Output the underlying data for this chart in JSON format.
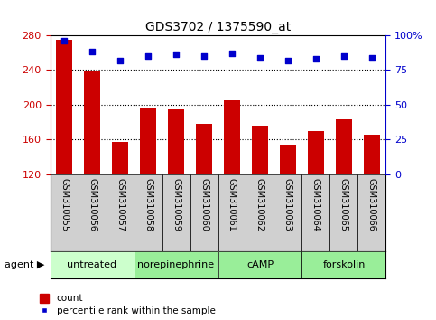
{
  "title": "GDS3702 / 1375590_at",
  "samples": [
    "GSM310055",
    "GSM310056",
    "GSM310057",
    "GSM310058",
    "GSM310059",
    "GSM310060",
    "GSM310061",
    "GSM310062",
    "GSM310063",
    "GSM310064",
    "GSM310065",
    "GSM310066"
  ],
  "bar_values": [
    275,
    238,
    157,
    197,
    195,
    178,
    205,
    176,
    154,
    170,
    183,
    166
  ],
  "percentile_values": [
    96,
    88,
    82,
    85,
    86,
    85,
    87,
    84,
    82,
    83,
    85,
    84
  ],
  "bar_color": "#cc0000",
  "dot_color": "#0000cc",
  "ylim_left": [
    120,
    280
  ],
  "ylim_right": [
    0,
    100
  ],
  "yticks_left": [
    120,
    160,
    200,
    240,
    280
  ],
  "yticks_right": [
    0,
    25,
    50,
    75,
    100
  ],
  "grid_lines": [
    160,
    200,
    240
  ],
  "agents": [
    {
      "label": "untreated",
      "start": 0,
      "end": 3,
      "color": "#ccffcc"
    },
    {
      "label": "norepinephrine",
      "start": 3,
      "end": 6,
      "color": "#99ee99"
    },
    {
      "label": "cAMP",
      "start": 6,
      "end": 9,
      "color": "#99ee99"
    },
    {
      "label": "forskolin",
      "start": 9,
      "end": 12,
      "color": "#99ee99"
    }
  ],
  "sample_box_color": "#d0d0d0",
  "xlabel_agent": "agent",
  "legend_count": "count",
  "legend_pct": "percentile rank within the sample",
  "background_color": "#ffffff",
  "title_fontsize": 10,
  "tick_fontsize": 8,
  "sample_fontsize": 7,
  "agent_fontsize": 8
}
